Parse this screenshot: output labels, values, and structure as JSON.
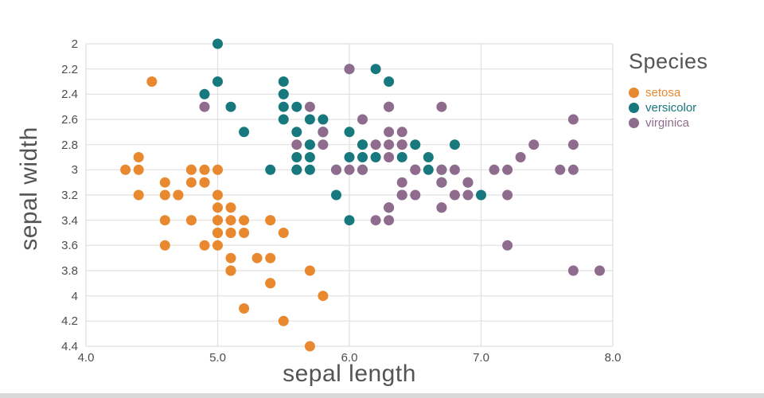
{
  "chart": {
    "xlabel": "sepal length",
    "ylabel": "sepal width",
    "x_ticks": [
      "4.0",
      "5.0",
      "6.0",
      "7.0",
      "8.0"
    ],
    "y_ticks": [
      "2",
      "2.2",
      "2.4",
      "2.6",
      "2.8",
      "3",
      "3.2",
      "3.4",
      "3.6",
      "3.8",
      "4",
      "4.2",
      "4.4"
    ],
    "legend": {
      "title": "Species",
      "items": [
        {
          "label": "setosa",
          "color": "#e8882f"
        },
        {
          "label": "versicolor",
          "color": "#17787d"
        },
        {
          "label": "virginica",
          "color": "#8f6b8e"
        }
      ]
    }
  },
  "chart_data": {
    "type": "scatter",
    "title": "",
    "xlabel": "sepal length",
    "ylabel": "sepal width",
    "xlim": [
      4.0,
      8.0
    ],
    "ylim": [
      2.0,
      4.4
    ],
    "y_inverted": true,
    "grid": true,
    "grid_color": "#e0e0e0",
    "legend_position": "right",
    "legend_title": "Species",
    "series": [
      {
        "name": "setosa",
        "color": "#e8882f",
        "points": [
          [
            5.1,
            3.5
          ],
          [
            4.9,
            3.0
          ],
          [
            4.7,
            3.2
          ],
          [
            4.6,
            3.1
          ],
          [
            5.0,
            3.6
          ],
          [
            5.4,
            3.9
          ],
          [
            4.6,
            3.4
          ],
          [
            5.0,
            3.4
          ],
          [
            4.4,
            2.9
          ],
          [
            4.9,
            3.1
          ],
          [
            5.4,
            3.7
          ],
          [
            4.8,
            3.4
          ],
          [
            4.8,
            3.0
          ],
          [
            4.3,
            3.0
          ],
          [
            5.8,
            4.0
          ],
          [
            5.7,
            4.4
          ],
          [
            5.4,
            3.9
          ],
          [
            5.1,
            3.5
          ],
          [
            5.7,
            3.8
          ],
          [
            5.1,
            3.8
          ],
          [
            5.4,
            3.4
          ],
          [
            5.1,
            3.7
          ],
          [
            4.6,
            3.6
          ],
          [
            5.1,
            3.3
          ],
          [
            4.8,
            3.4
          ],
          [
            5.0,
            3.0
          ],
          [
            5.0,
            3.4
          ],
          [
            5.2,
            3.5
          ],
          [
            5.2,
            3.4
          ],
          [
            4.7,
            3.2
          ],
          [
            4.8,
            3.1
          ],
          [
            5.4,
            3.4
          ],
          [
            5.2,
            4.1
          ],
          [
            5.5,
            4.2
          ],
          [
            4.9,
            3.1
          ],
          [
            5.0,
            3.2
          ],
          [
            5.5,
            3.5
          ],
          [
            4.9,
            3.6
          ],
          [
            4.4,
            3.0
          ],
          [
            5.1,
            3.4
          ],
          [
            5.0,
            3.5
          ],
          [
            4.5,
            2.3
          ],
          [
            4.4,
            3.2
          ],
          [
            5.0,
            3.5
          ],
          [
            5.1,
            3.8
          ],
          [
            4.8,
            3.0
          ],
          [
            5.1,
            3.8
          ],
          [
            4.6,
            3.2
          ],
          [
            5.3,
            3.7
          ],
          [
            5.0,
            3.3
          ]
        ]
      },
      {
        "name": "versicolor",
        "color": "#17787d",
        "points": [
          [
            7.0,
            3.2
          ],
          [
            6.4,
            3.2
          ],
          [
            6.9,
            3.1
          ],
          [
            5.5,
            2.3
          ],
          [
            6.5,
            2.8
          ],
          [
            5.7,
            2.8
          ],
          [
            6.3,
            3.3
          ],
          [
            4.9,
            2.4
          ],
          [
            6.6,
            2.9
          ],
          [
            5.2,
            2.7
          ],
          [
            5.0,
            2.0
          ],
          [
            5.9,
            3.0
          ],
          [
            6.0,
            2.2
          ],
          [
            6.1,
            2.9
          ],
          [
            5.6,
            2.9
          ],
          [
            6.7,
            3.1
          ],
          [
            5.6,
            3.0
          ],
          [
            5.8,
            2.7
          ],
          [
            6.2,
            2.2
          ],
          [
            5.6,
            2.5
          ],
          [
            5.9,
            3.2
          ],
          [
            6.1,
            2.8
          ],
          [
            6.3,
            2.5
          ],
          [
            6.1,
            2.8
          ],
          [
            6.4,
            2.9
          ],
          [
            6.6,
            3.0
          ],
          [
            6.8,
            2.8
          ],
          [
            6.7,
            3.0
          ],
          [
            6.0,
            2.9
          ],
          [
            5.7,
            2.6
          ],
          [
            5.5,
            2.4
          ],
          [
            5.5,
            2.4
          ],
          [
            5.8,
            2.7
          ],
          [
            6.0,
            2.7
          ],
          [
            5.4,
            3.0
          ],
          [
            6.0,
            3.4
          ],
          [
            6.7,
            3.1
          ],
          [
            6.3,
            2.3
          ],
          [
            5.6,
            3.0
          ],
          [
            5.5,
            2.5
          ],
          [
            5.5,
            2.6
          ],
          [
            6.1,
            3.0
          ],
          [
            5.8,
            2.6
          ],
          [
            5.0,
            2.3
          ],
          [
            5.6,
            2.7
          ],
          [
            5.7,
            3.0
          ],
          [
            5.7,
            2.9
          ],
          [
            6.2,
            2.9
          ],
          [
            5.1,
            2.5
          ],
          [
            5.7,
            2.8
          ]
        ]
      },
      {
        "name": "virginica",
        "color": "#8f6b8e",
        "points": [
          [
            6.3,
            3.3
          ],
          [
            5.8,
            2.7
          ],
          [
            7.1,
            3.0
          ],
          [
            6.3,
            2.9
          ],
          [
            6.5,
            3.0
          ],
          [
            7.6,
            3.0
          ],
          [
            4.9,
            2.5
          ],
          [
            7.3,
            2.9
          ],
          [
            6.7,
            2.5
          ],
          [
            7.2,
            3.6
          ],
          [
            6.5,
            3.2
          ],
          [
            6.4,
            2.7
          ],
          [
            6.8,
            3.0
          ],
          [
            5.7,
            2.5
          ],
          [
            5.8,
            2.8
          ],
          [
            6.4,
            3.2
          ],
          [
            6.5,
            3.0
          ],
          [
            7.7,
            3.8
          ],
          [
            7.7,
            2.6
          ],
          [
            6.0,
            2.2
          ],
          [
            6.9,
            3.2
          ],
          [
            5.6,
            2.8
          ],
          [
            7.7,
            2.8
          ],
          [
            6.3,
            2.7
          ],
          [
            6.7,
            3.3
          ],
          [
            7.2,
            3.2
          ],
          [
            6.2,
            2.8
          ],
          [
            6.1,
            3.0
          ],
          [
            6.4,
            2.8
          ],
          [
            7.2,
            3.0
          ],
          [
            7.4,
            2.8
          ],
          [
            7.9,
            3.8
          ],
          [
            6.4,
            2.8
          ],
          [
            6.3,
            2.8
          ],
          [
            6.1,
            2.6
          ],
          [
            7.7,
            3.0
          ],
          [
            6.3,
            3.4
          ],
          [
            6.4,
            3.1
          ],
          [
            6.0,
            3.0
          ],
          [
            6.9,
            3.1
          ],
          [
            6.7,
            3.1
          ],
          [
            6.9,
            3.1
          ],
          [
            5.8,
            2.7
          ],
          [
            6.8,
            3.2
          ],
          [
            6.7,
            3.3
          ],
          [
            6.7,
            3.0
          ],
          [
            6.3,
            2.5
          ],
          [
            6.5,
            3.0
          ],
          [
            6.2,
            3.4
          ],
          [
            5.9,
            3.0
          ]
        ]
      }
    ]
  }
}
